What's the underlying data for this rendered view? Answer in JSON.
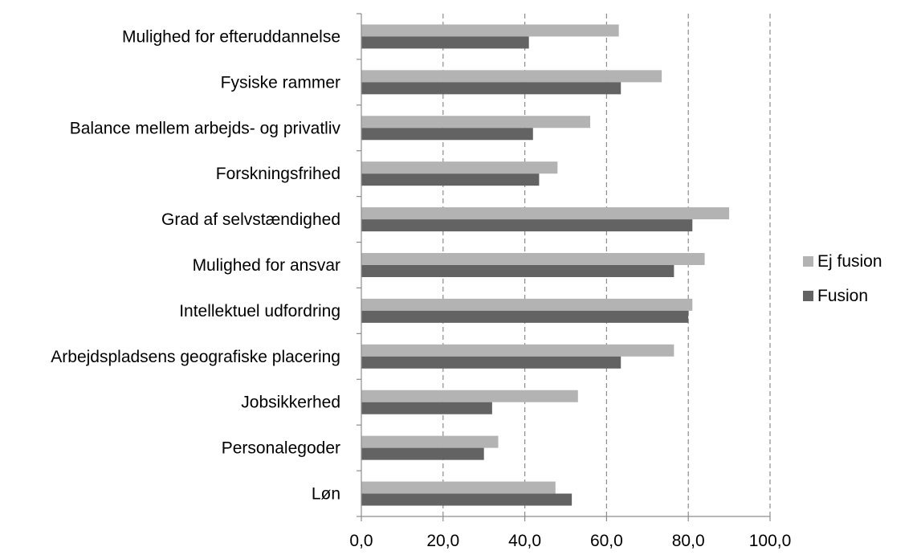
{
  "chart_data": {
    "type": "bar",
    "orientation": "horizontal",
    "categories": [
      "Mulighed for efteruddannelse",
      "Fysiske rammer",
      "Balance mellem arbejds- og privatliv",
      "Forskningsfrihed",
      "Grad af selvstændighed",
      "Mulighed for ansvar",
      "Intellektuel udfordring",
      "Arbejdspladsens geografiske placering",
      "Jobsikkerhed",
      "Personalegoder",
      "Løn"
    ],
    "series": [
      {
        "name": "Ej fusion",
        "color": "#b3b3b3",
        "values": [
          63.0,
          73.5,
          56.0,
          48.0,
          90.0,
          84.0,
          81.0,
          76.5,
          53.0,
          33.5,
          47.5
        ]
      },
      {
        "name": "Fusion",
        "color": "#636363",
        "values": [
          41.0,
          63.5,
          42.0,
          43.5,
          81.0,
          76.5,
          80.0,
          63.5,
          32.0,
          30.0,
          51.5
        ]
      }
    ],
    "xlim": [
      0,
      100
    ],
    "xticks": [
      0,
      20,
      40,
      60,
      80,
      100
    ],
    "xtick_labels": [
      "0,0",
      "20,0",
      "40,0",
      "60,0",
      "80,0",
      "100,0"
    ],
    "gridlines": "vertical dashed",
    "legend_position": "right",
    "title": "",
    "xlabel": "",
    "ylabel": ""
  }
}
